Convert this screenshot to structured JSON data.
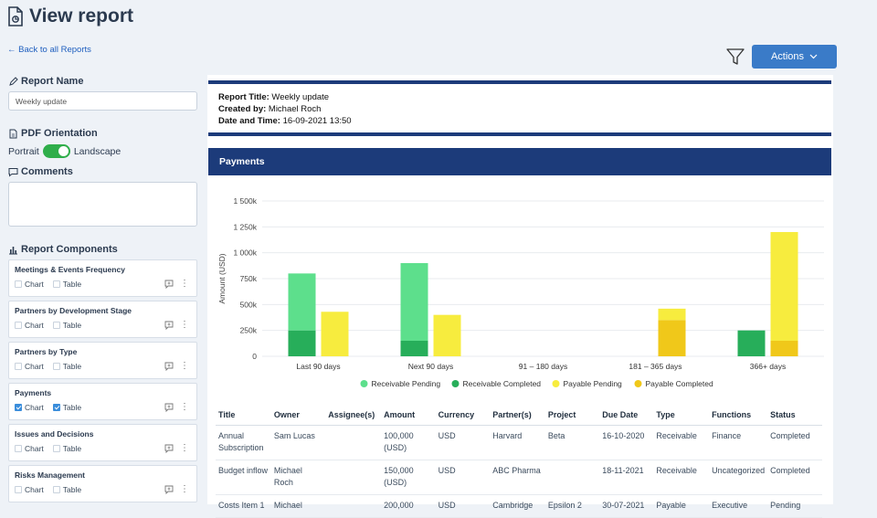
{
  "header": {
    "title": "View report",
    "back_link": "← Back to all Reports",
    "actions_label": "Actions"
  },
  "sidebar": {
    "report_name_label": "Report Name",
    "report_name_value": "Weekly update",
    "pdf_orientation_label": "PDF Orientation",
    "orientation_left": "Portrait",
    "orientation_right": "Landscape",
    "orientation_selected": "Landscape",
    "comments_label": "Comments",
    "comments_value": "",
    "components_label": "Report Components",
    "components": [
      {
        "name": "Meetings & Events Frequency",
        "chart_label": "Chart",
        "table_label": "Table",
        "chart_checked": false,
        "table_checked": false
      },
      {
        "name": "Partners by Development Stage",
        "chart_label": "Chart",
        "table_label": "Table",
        "chart_checked": false,
        "table_checked": false
      },
      {
        "name": "Partners by Type",
        "chart_label": "Chart",
        "table_label": "Table",
        "chart_checked": false,
        "table_checked": false
      },
      {
        "name": "Payments",
        "chart_label": "Chart",
        "table_label": "Table",
        "chart_checked": true,
        "table_checked": true
      },
      {
        "name": "Issues and Decisions",
        "chart_label": "Chart",
        "table_label": "Table",
        "chart_checked": false,
        "table_checked": false
      },
      {
        "name": "Risks Management",
        "chart_label": "Chart",
        "table_label": "Table",
        "chart_checked": false,
        "table_checked": false
      }
    ]
  },
  "report": {
    "title_label": "Report Title:",
    "title_value": "Weekly update",
    "created_label": "Created by:",
    "created_value": "Michael Roch",
    "datetime_label": "Date and Time:",
    "datetime_value": "16-09-2021 13:50",
    "section_title": "Payments"
  },
  "chart_data": {
    "type": "bar",
    "stacked": true,
    "categories": [
      "Last 90 days",
      "Next 90 days",
      "91 – 180 days",
      "181 – 365 days",
      "366+ days"
    ],
    "ylabel": "Amount (USD)",
    "ylim": [
      0,
      1500000
    ],
    "yticks": [
      0,
      250000,
      500000,
      750000,
      1000000,
      1250000,
      1500000
    ],
    "ytick_labels": [
      "0",
      "250k",
      "500k",
      "750k",
      "1 000k",
      "1 250k",
      "1 500k"
    ],
    "groups": [
      {
        "name": "Receivable",
        "stack": [
          {
            "series": "Receivable Completed",
            "values": [
              250000,
              150000,
              0,
              0,
              250000
            ]
          },
          {
            "series": "Receivable Pending",
            "values": [
              550000,
              750000,
              0,
              0,
              0
            ]
          }
        ]
      },
      {
        "name": "Payable",
        "stack": [
          {
            "series": "Payable Completed",
            "values": [
              0,
              0,
              0,
              350000,
              150000
            ]
          },
          {
            "series": "Payable Pending",
            "values": [
              430000,
              400000,
              0,
              110000,
              1050000
            ]
          }
        ]
      }
    ],
    "legend": [
      {
        "label": "Receivable Pending",
        "color": "#5ddf8c"
      },
      {
        "label": "Receivable Completed",
        "color": "#27ae5a"
      },
      {
        "label": "Payable Pending",
        "color": "#f7ec3e"
      },
      {
        "label": "Payable Completed",
        "color": "#f0c81a"
      }
    ],
    "legend_position": "bottom"
  },
  "table": {
    "columns": [
      "Title",
      "Owner",
      "Assignee(s)",
      "Amount",
      "Currency",
      "Partner(s)",
      "Project",
      "Due Date",
      "Type",
      "Functions",
      "Status"
    ],
    "rows": [
      [
        "Annual Subscription",
        "Sam Lucas",
        "",
        "100,000 (USD)",
        "USD",
        "Harvard",
        "Beta",
        "16-10-2020",
        "Receivable",
        "Finance",
        "Completed"
      ],
      [
        "Budget inflow",
        "Michael Roch",
        "",
        "150,000 (USD)",
        "USD",
        "ABC Pharma",
        "",
        "18-11-2021",
        "Receivable",
        "Uncategorized",
        "Completed"
      ],
      [
        "Costs Item 1",
        "Michael",
        "",
        "200,000",
        "USD",
        "Cambridge",
        "Epsilon 2",
        "30-07-2021",
        "Payable",
        "Executive",
        "Pending"
      ]
    ]
  }
}
